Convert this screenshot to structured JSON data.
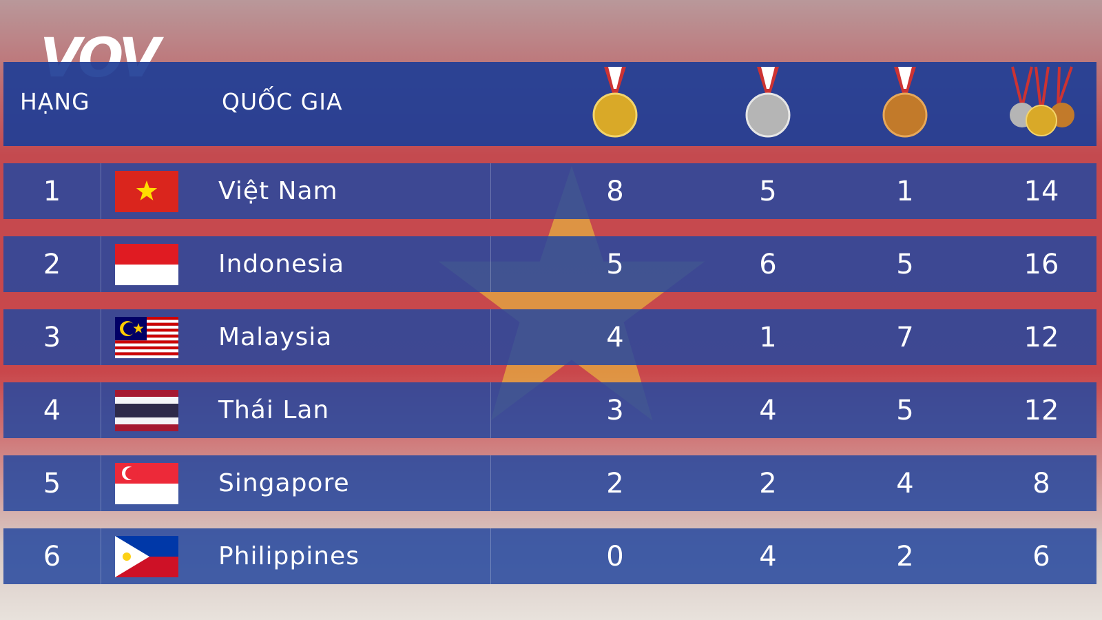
{
  "logo": "VOV",
  "header": {
    "rank": "HẠNG",
    "country": "QUỐC GIA"
  },
  "table": {
    "rows": [
      [
        1,
        "Việt Nam",
        8,
        5,
        1,
        14
      ],
      [
        2,
        "Indonesia",
        5,
        6,
        5,
        16
      ],
      [
        3,
        "Malaysia",
        4,
        1,
        7,
        12
      ],
      [
        4,
        "Thái Lan",
        3,
        4,
        5,
        12
      ],
      [
        5,
        "Singapore",
        2,
        2,
        4,
        8
      ],
      [
        6,
        "Philippines",
        0,
        4,
        2,
        6
      ]
    ]
  }
}
